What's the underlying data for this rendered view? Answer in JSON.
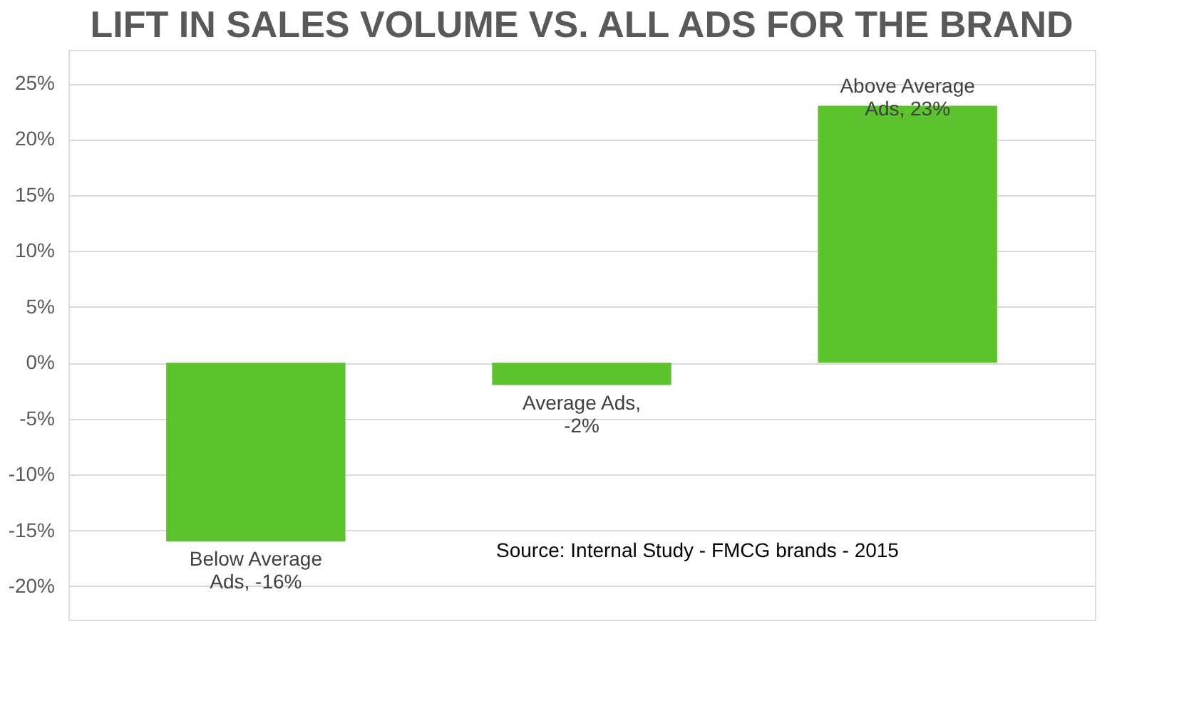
{
  "chart_data": {
    "type": "bar",
    "title": "LIFT IN SALES VOLUME VS. ALL ADS FOR THE BRAND",
    "categories": [
      null,
      null,
      null
    ],
    "values": [
      -16,
      -2,
      23
    ],
    "value_labels": [
      "Below Average Ads, -16%",
      "Average Ads, -2%",
      "Above Average Ads, 23%"
    ],
    "color": "#5cc22e",
    "ylim": [
      -23,
      28
    ],
    "yticks": [
      {
        "value": -20,
        "label": "-20%"
      },
      {
        "value": -15,
        "label": "-15%"
      },
      {
        "value": -10,
        "label": "-10%"
      },
      {
        "value": -5,
        "label": "-5%"
      },
      {
        "value": 0,
        "label": "0%"
      },
      {
        "value": 5,
        "label": "5%"
      },
      {
        "value": 10,
        "label": "10%"
      },
      {
        "value": 15,
        "label": "15%"
      },
      {
        "value": 20,
        "label": "20%"
      },
      {
        "value": 25,
        "label": "25%"
      }
    ],
    "grid": "y",
    "tick_labels": "y",
    "annotations": [
      "Source: Internal Study - FMCG brands - 2015"
    ]
  }
}
